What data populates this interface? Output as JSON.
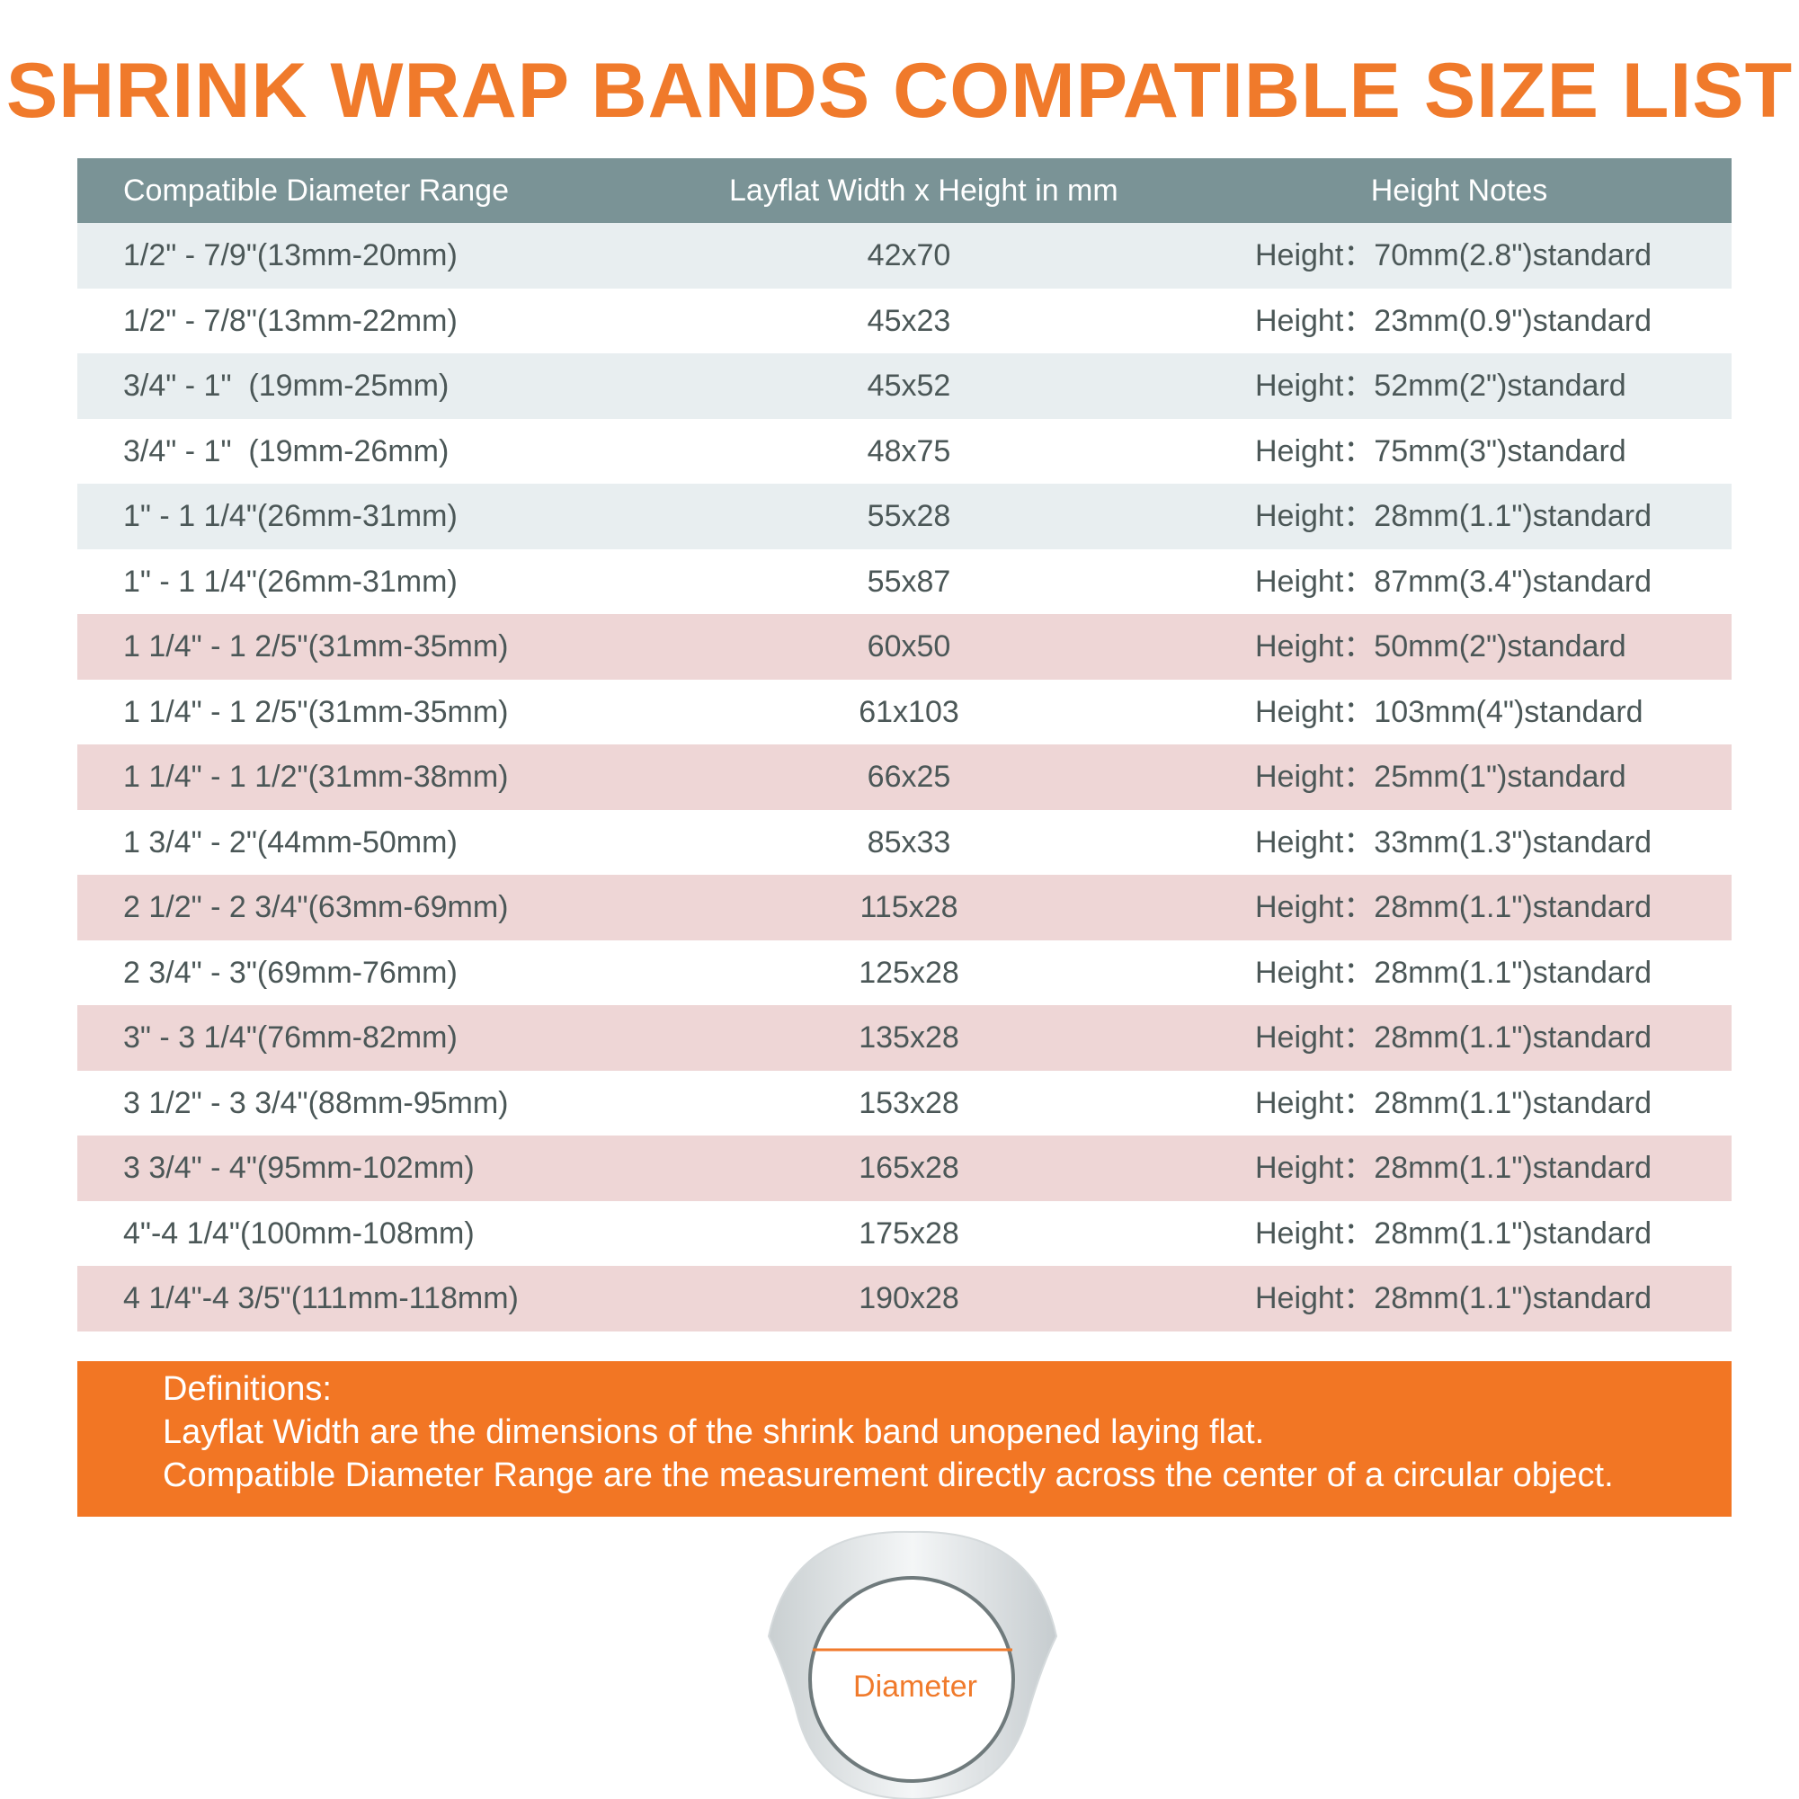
{
  "header": {
    "title": "SHRINK WRAP BANDS COMPATIBLE SIZE LIST"
  },
  "table": {
    "columns": [
      "Compatible Diameter Range",
      "Layflat Width x Height in mm",
      "Height Notes"
    ],
    "rows": [
      [
        "1/2\" - 7/9\"(13mm-20mm)",
        "42x70",
        "Height：70mm(2.8\")standard"
      ],
      [
        "1/2\" - 7/8\"(13mm-22mm)",
        "45x23",
        "Height：23mm(0.9\")standard"
      ],
      [
        "3/4\" - 1\"  (19mm-25mm)",
        "45x52",
        "Height：52mm(2\")standard"
      ],
      [
        "3/4\" - 1\"  (19mm-26mm)",
        "48x75",
        "Height：75mm(3\")standard"
      ],
      [
        "1\" - 1 1/4\"(26mm-31mm)",
        "55x28",
        "Height：28mm(1.1\")standard"
      ],
      [
        "1\" - 1 1/4\"(26mm-31mm)",
        "55x87",
        "Height：87mm(3.4\")standard"
      ],
      [
        "1 1/4\" - 1 2/5\"(31mm-35mm)",
        "60x50",
        "Height：50mm(2\")standard"
      ],
      [
        "1 1/4\" - 1 2/5\"(31mm-35mm)",
        "61x103",
        "Height：103mm(4\")standard"
      ],
      [
        "1 1/4\" - 1 1/2\"(31mm-38mm)",
        "66x25",
        "Height：25mm(1\")standard"
      ],
      [
        "1 3/4\" - 2\"(44mm-50mm)",
        "85x33",
        "Height：33mm(1.3\")standard"
      ],
      [
        "2 1/2\" - 2 3/4\"(63mm-69mm)",
        "115x28",
        "Height：28mm(1.1\")standard"
      ],
      [
        "2 3/4\" - 3\"(69mm-76mm)",
        "125x28",
        "Height：28mm(1.1\")standard"
      ],
      [
        "3\" - 3 1/4\"(76mm-82mm)",
        "135x28",
        "Height：28mm(1.1\")standard"
      ],
      [
        "3 1/2\" - 3 3/4\"(88mm-95mm)",
        "153x28",
        "Height：28mm(1.1\")standard"
      ],
      [
        "3 3/4\" - 4\"(95mm-102mm)",
        "165x28",
        "Height：28mm(1.1\")standard"
      ],
      [
        "4\"-4 1/4\"(100mm-108mm)",
        "175x28",
        "Height：28mm(1.1\")standard"
      ],
      [
        "4 1/4\"-4 3/5\"(111mm-118mm)",
        "190x28",
        "Height：28mm(1.1\")standard"
      ]
    ]
  },
  "definitions": {
    "lines": [
      "Definitions:",
      "Layflat Width are the dimensions of the shrink band unopened laying flat.",
      "Compatible Diameter Range are the measurement directly across the center of a circular object."
    ]
  },
  "diagram": {
    "label": "Diameter"
  }
}
